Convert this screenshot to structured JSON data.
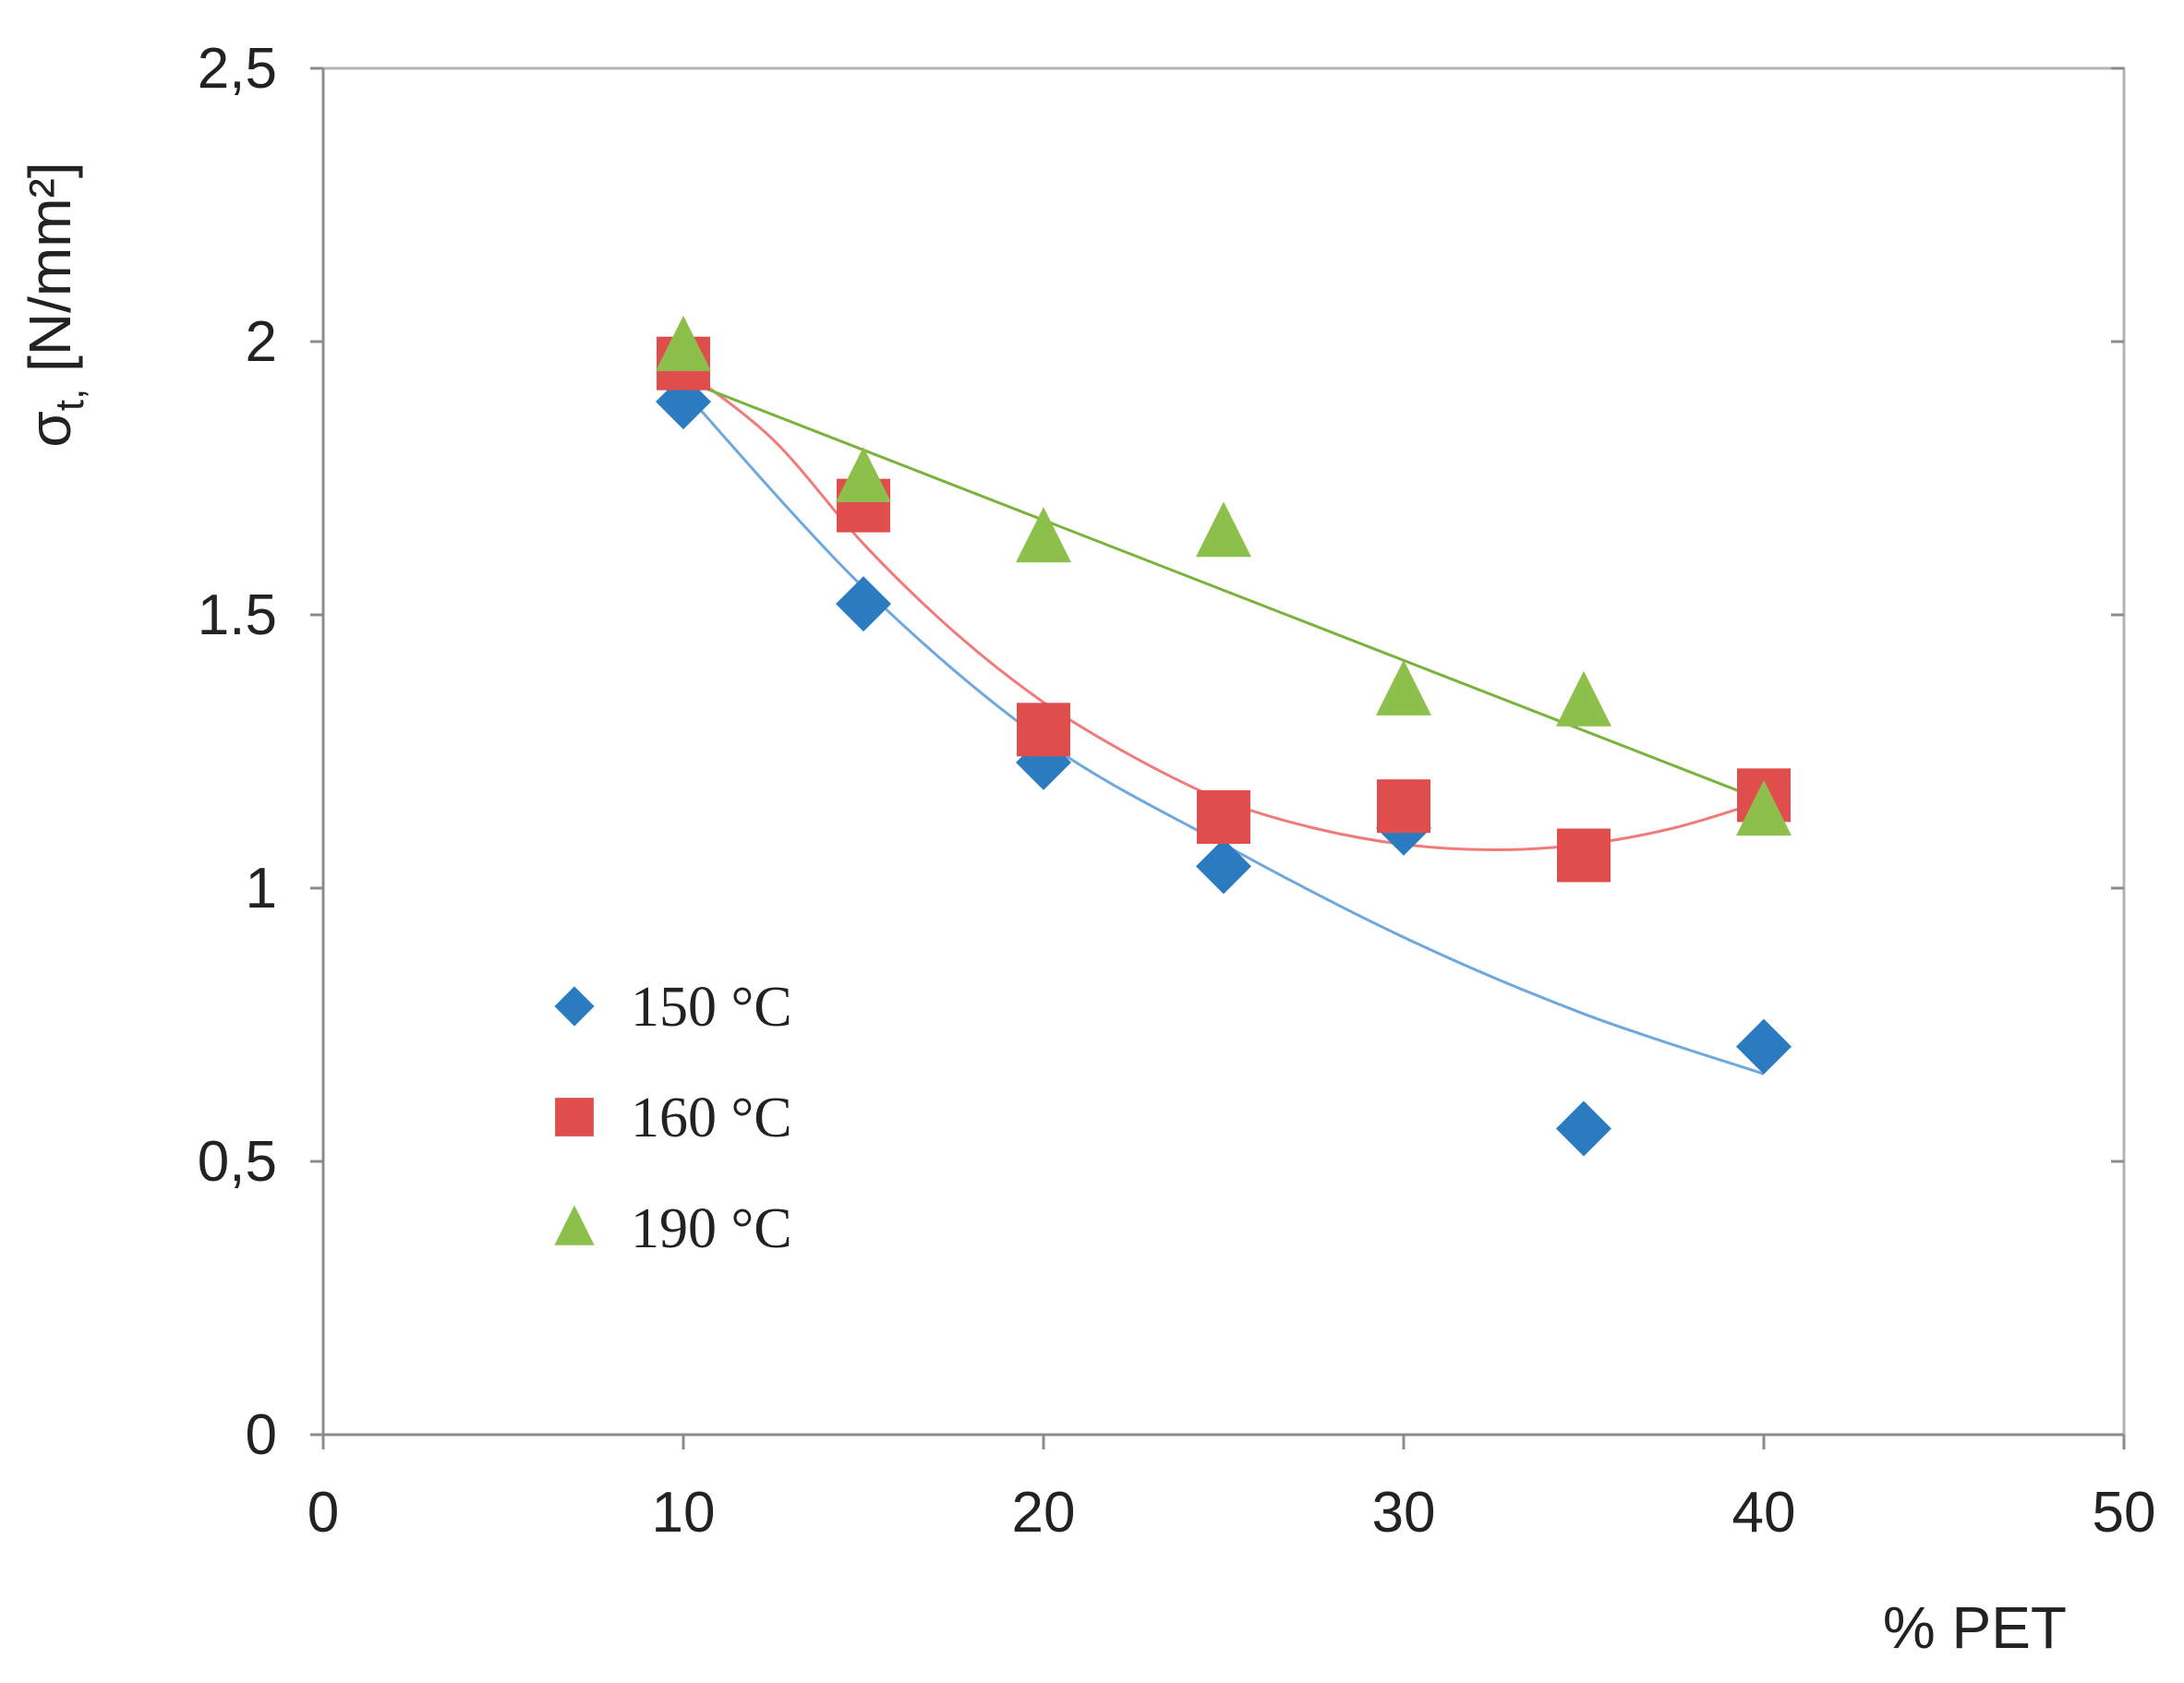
{
  "chart_data": {
    "type": "scatter",
    "title": "",
    "xlabel": "% PET",
    "ylabel": "σ",
    "ylabel_subscript": "t,",
    "ylabel_units": " [N/mm²]",
    "xlim": [
      0,
      50
    ],
    "ylim": [
      0,
      2.5
    ],
    "x_ticks": [
      0,
      10,
      20,
      30,
      40,
      50
    ],
    "x_tick_labels": [
      "0",
      "10",
      "20",
      "30",
      "40",
      "50"
    ],
    "y_ticks": [
      0,
      0.5,
      1,
      1.5,
      2,
      2.5
    ],
    "y_tick_labels": [
      "0",
      "0,5",
      "1",
      "1.5",
      "2",
      "2,5"
    ],
    "grid": false,
    "legend_position": "lower-left",
    "series": [
      {
        "name": "150 °C",
        "marker": "diamond",
        "color": "#2b7bc0",
        "trend_color": "#6fa8dc",
        "x": [
          10,
          15,
          20,
          25,
          30,
          35,
          40
        ],
        "y": [
          1.89,
          1.52,
          1.23,
          1.04,
          1.11,
          0.56,
          0.71
        ],
        "trend_x": [
          10,
          15,
          20,
          25,
          30,
          35,
          40
        ],
        "trend_y": [
          1.91,
          1.55,
          1.27,
          1.08,
          0.91,
          0.77,
          0.66
        ]
      },
      {
        "name": "160 °C",
        "marker": "square",
        "color": "#e04d4d",
        "trend_color": "#ef7b7b",
        "x": [
          10,
          15,
          20,
          25,
          30,
          35,
          40
        ],
        "y": [
          1.96,
          1.7,
          1.29,
          1.13,
          1.15,
          1.06,
          1.17
        ],
        "trend_x": [
          10,
          12.5,
          15,
          17.5,
          20,
          22.5,
          25,
          27.5,
          30,
          32.5,
          35,
          37.5,
          40
        ],
        "trend_y": [
          1.95,
          1.82,
          1.63,
          1.47,
          1.34,
          1.24,
          1.16,
          1.11,
          1.08,
          1.07,
          1.08,
          1.11,
          1.16
        ]
      },
      {
        "name": "190 °C",
        "marker": "triangle",
        "color": "#8dc04a",
        "trend_color": "#7ab33b",
        "x": [
          10,
          15,
          20,
          25,
          30,
          35,
          40
        ],
        "y": [
          1.99,
          1.75,
          1.64,
          1.65,
          1.36,
          1.34,
          1.14
        ],
        "trend_x": [
          10,
          40
        ],
        "trend_y": [
          1.93,
          1.16
        ]
      }
    ]
  }
}
